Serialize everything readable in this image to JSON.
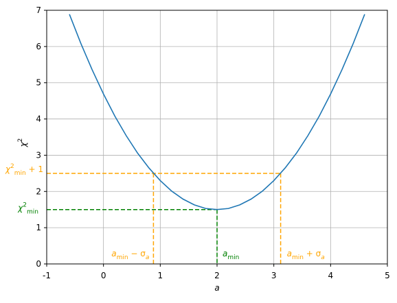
{
  "chart_data": {
    "type": "line",
    "xlabel": "a",
    "ylabel": [
      {
        "t": "χ"
      },
      {
        "t": "2",
        "sup": true
      }
    ],
    "x": [
      -0.6,
      -0.4,
      -0.2,
      0,
      0.2,
      0.4,
      0.6,
      0.8,
      1.0,
      1.2,
      1.4,
      1.6,
      1.8,
      2.0,
      2.2,
      2.4,
      2.6,
      2.8,
      3.0,
      3.2,
      3.4,
      3.6,
      3.8,
      4.0,
      4.2,
      4.4,
      4.6
    ],
    "series": [
      {
        "color": "#1f77b4",
        "values": [
          6.89,
          6.09,
          5.36,
          4.69,
          4.08,
          3.54,
          3.06,
          2.65,
          2.3,
          2.01,
          1.79,
          1.63,
          1.53,
          1.5,
          1.53,
          1.63,
          1.79,
          2.01,
          2.3,
          2.65,
          3.06,
          3.54,
          4.08,
          4.69,
          5.36,
          6.09,
          6.89
        ]
      }
    ],
    "xlim": [
      -1,
      5
    ],
    "ylim": [
      0,
      7
    ],
    "xticks": [
      -1,
      0,
      1,
      2,
      3,
      4,
      5
    ],
    "yticks": [
      0,
      1,
      2,
      3,
      4,
      5,
      6,
      7
    ],
    "grid": true,
    "reference": {
      "a_min": 2,
      "chi2_min": 1.5,
      "a_lo": 0.88,
      "a_hi": 3.12,
      "chi2_plus1": 2.5,
      "min_color": "#008000",
      "sigma_color": "#ffa500"
    },
    "annotations": {
      "lo": [
        {
          "t": "a"
        },
        {
          "t": "min",
          "sub": true
        },
        {
          "t": " − σ"
        },
        {
          "t": "a",
          "sub": true
        }
      ],
      "min": [
        {
          "t": "a"
        },
        {
          "t": "min",
          "sub": true
        }
      ],
      "hi": [
        {
          "t": "a"
        },
        {
          "t": "min",
          "sub": true
        },
        {
          "t": " + σ"
        },
        {
          "t": "a",
          "sub": true
        }
      ],
      "chi2min": [
        {
          "t": "χ"
        },
        {
          "t": "2",
          "sup": true
        },
        {
          "t": "min",
          "sub": true
        }
      ],
      "chi2plus": [
        {
          "t": "χ"
        },
        {
          "t": "2",
          "sup": true
        },
        {
          "t": "min",
          "sub": true
        },
        {
          "t": " + 1"
        }
      ]
    }
  }
}
